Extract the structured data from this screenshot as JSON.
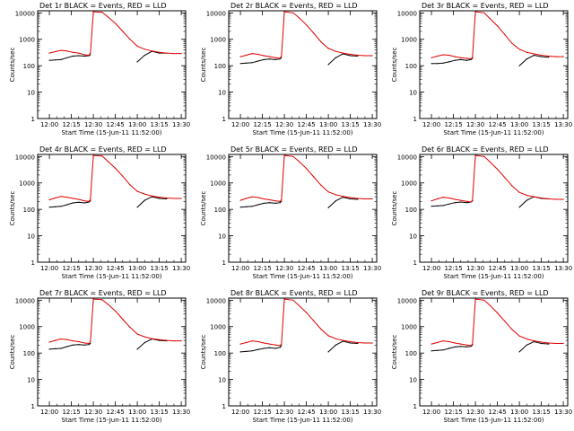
{
  "colors": {
    "events": "#000000",
    "lld": "#e00000",
    "axes": "#000000",
    "background": "#ffffff"
  },
  "common": {
    "xlabel": "Start Time (15-Jun-11 11:52:00)",
    "ylabel": "Counts/sec",
    "y_ticks": [
      "1",
      "10",
      "100",
      "1000",
      "10000"
    ],
    "x_ticks": [
      "12:00",
      "12:15",
      "12:30",
      "12:45",
      "13:00",
      "13:15",
      "13:30"
    ]
  },
  "chart_data": [
    {
      "type": "line",
      "title": "Det 1r BLACK = Events, RED = LLD",
      "yscale": "log",
      "ylim": [
        1,
        12000
      ],
      "xlim": [
        "11:52:00",
        "13:33:00"
      ],
      "x": [
        "12:00",
        "12:04",
        "12:08",
        "12:12",
        "12:16",
        "12:20",
        "12:24",
        "12:27",
        "12:28",
        "12:30",
        "12:36",
        "12:40",
        "12:45",
        "12:50",
        "12:55",
        "13:00",
        "13:05",
        "13:10",
        "13:15",
        "13:20",
        "13:25",
        "13:30"
      ],
      "series": [
        {
          "name": "Events",
          "values": [
            160,
            165,
            170,
            200,
            230,
            240,
            230,
            240,
            260,
            null,
            null,
            null,
            null,
            null,
            null,
            140,
            250,
            350,
            300,
            300,
            null,
            null
          ]
        },
        {
          "name": "LLD",
          "values": [
            300,
            340,
            380,
            360,
            320,
            300,
            260,
            250,
            300,
            11000,
            10500,
            7000,
            4000,
            2000,
            1000,
            550,
            420,
            360,
            320,
            300,
            290,
            290
          ]
        }
      ]
    },
    {
      "type": "line",
      "title": "Det 2r BLACK = Events, RED = LLD",
      "yscale": "log",
      "ylim": [
        1,
        12000
      ],
      "xlim": [
        "11:52:00",
        "13:33:00"
      ],
      "x": [
        "12:00",
        "12:04",
        "12:08",
        "12:12",
        "12:16",
        "12:20",
        "12:24",
        "12:27",
        "12:28",
        "12:30",
        "12:36",
        "12:40",
        "12:45",
        "12:50",
        "12:55",
        "13:00",
        "13:05",
        "13:10",
        "13:15",
        "13:20",
        "13:25",
        "13:30"
      ],
      "series": [
        {
          "name": "Events",
          "values": [
            120,
            125,
            130,
            150,
            170,
            180,
            170,
            180,
            200,
            null,
            null,
            null,
            null,
            null,
            null,
            110,
            200,
            280,
            240,
            230,
            null,
            null
          ]
        },
        {
          "name": "LLD",
          "values": [
            220,
            250,
            290,
            270,
            240,
            220,
            200,
            190,
            230,
            11000,
            10000,
            6500,
            3500,
            1700,
            800,
            450,
            350,
            300,
            270,
            250,
            240,
            240
          ]
        }
      ]
    },
    {
      "type": "line",
      "title": "Det 3r BLACK = Events, RED = LLD",
      "yscale": "log",
      "ylim": [
        1,
        12000
      ],
      "xlim": [
        "11:52:00",
        "13:33:00"
      ],
      "x": [
        "12:00",
        "12:04",
        "12:08",
        "12:12",
        "12:16",
        "12:20",
        "12:24",
        "12:27",
        "12:28",
        "12:30",
        "12:36",
        "12:40",
        "12:45",
        "12:50",
        "12:55",
        "13:00",
        "13:05",
        "13:10",
        "13:15",
        "13:20",
        "13:25",
        "13:30"
      ],
      "series": [
        {
          "name": "Events",
          "values": [
            120,
            120,
            125,
            140,
            160,
            170,
            160,
            170,
            190,
            null,
            null,
            null,
            null,
            null,
            null,
            100,
            180,
            250,
            220,
            210,
            null,
            null
          ]
        },
        {
          "name": "LLD",
          "values": [
            200,
            230,
            260,
            250,
            220,
            200,
            190,
            180,
            210,
            11000,
            10000,
            6000,
            3200,
            1500,
            700,
            420,
            320,
            280,
            250,
            230,
            220,
            220
          ]
        }
      ]
    },
    {
      "type": "line",
      "title": "Det 4r BLACK = Events, RED = LLD",
      "yscale": "log",
      "ylim": [
        1,
        12000
      ],
      "xlim": [
        "11:52:00",
        "13:33:00"
      ],
      "x": [
        "12:00",
        "12:04",
        "12:08",
        "12:12",
        "12:16",
        "12:20",
        "12:24",
        "12:27",
        "12:28",
        "12:30",
        "12:36",
        "12:40",
        "12:45",
        "12:50",
        "12:55",
        "13:00",
        "13:05",
        "13:10",
        "13:15",
        "13:20",
        "13:25",
        "13:30"
      ],
      "series": [
        {
          "name": "Events",
          "values": [
            120,
            125,
            130,
            150,
            175,
            185,
            175,
            190,
            210,
            null,
            null,
            null,
            null,
            null,
            null,
            120,
            220,
            300,
            260,
            250,
            null,
            null
          ]
        },
        {
          "name": "LLD",
          "values": [
            230,
            270,
            310,
            290,
            260,
            240,
            210,
            200,
            240,
            11000,
            10500,
            6500,
            3600,
            1800,
            850,
            480,
            380,
            320,
            290,
            270,
            260,
            260
          ]
        }
      ]
    },
    {
      "type": "line",
      "title": "Det 5r BLACK = Events, RED = LLD",
      "yscale": "log",
      "ylim": [
        1,
        12000
      ],
      "xlim": [
        "11:52:00",
        "13:33:00"
      ],
      "x": [
        "12:00",
        "12:04",
        "12:08",
        "12:12",
        "12:16",
        "12:20",
        "12:24",
        "12:27",
        "12:28",
        "12:30",
        "12:36",
        "12:40",
        "12:45",
        "12:50",
        "12:55",
        "13:00",
        "13:05",
        "13:10",
        "13:15",
        "13:20",
        "13:25",
        "13:30"
      ],
      "series": [
        {
          "name": "Events",
          "values": [
            120,
            125,
            130,
            150,
            170,
            180,
            170,
            180,
            200,
            null,
            null,
            null,
            null,
            null,
            null,
            115,
            210,
            290,
            250,
            240,
            null,
            null
          ]
        },
        {
          "name": "LLD",
          "values": [
            220,
            260,
            300,
            280,
            250,
            230,
            210,
            200,
            230,
            11000,
            10000,
            6500,
            3500,
            1700,
            820,
            460,
            360,
            310,
            280,
            260,
            250,
            250
          ]
        }
      ]
    },
    {
      "type": "line",
      "title": "Det 6r BLACK = Events, RED = LLD",
      "yscale": "log",
      "ylim": [
        1,
        12000
      ],
      "xlim": [
        "11:52:00",
        "13:33:00"
      ],
      "x": [
        "12:00",
        "12:04",
        "12:08",
        "12:12",
        "12:16",
        "12:20",
        "12:24",
        "12:27",
        "12:28",
        "12:30",
        "12:36",
        "12:40",
        "12:45",
        "12:50",
        "12:55",
        "13:00",
        "13:05",
        "13:10",
        "13:15",
        "13:20",
        "13:25",
        "13:30"
      ],
      "series": [
        {
          "name": "Events",
          "values": [
            130,
            135,
            140,
            160,
            180,
            190,
            180,
            190,
            210,
            null,
            null,
            null,
            null,
            null,
            null,
            120,
            220,
            300,
            260,
            250,
            null,
            null
          ]
        },
        {
          "name": "LLD",
          "values": [
            210,
            250,
            290,
            270,
            240,
            220,
            200,
            190,
            220,
            11000,
            10000,
            6200,
            3300,
            1600,
            780,
            440,
            340,
            300,
            270,
            250,
            240,
            240
          ]
        }
      ]
    },
    {
      "type": "line",
      "title": "Det 7r BLACK = Events, RED = LLD",
      "yscale": "log",
      "ylim": [
        1,
        12000
      ],
      "xlim": [
        "11:52:00",
        "13:33:00"
      ],
      "x": [
        "12:00",
        "12:04",
        "12:08",
        "12:12",
        "12:16",
        "12:20",
        "12:24",
        "12:27",
        "12:28",
        "12:30",
        "12:36",
        "12:40",
        "12:45",
        "12:50",
        "12:55",
        "13:00",
        "13:05",
        "13:10",
        "13:15",
        "13:20",
        "13:25",
        "13:30"
      ],
      "series": [
        {
          "name": "Events",
          "values": [
            140,
            145,
            150,
            175,
            200,
            210,
            200,
            210,
            230,
            null,
            null,
            null,
            null,
            null,
            null,
            140,
            250,
            340,
            300,
            290,
            null,
            null
          ]
        },
        {
          "name": "LLD",
          "values": [
            260,
            300,
            340,
            320,
            290,
            270,
            240,
            230,
            270,
            11000,
            10500,
            7000,
            3900,
            1900,
            950,
            520,
            410,
            350,
            320,
            300,
            290,
            290
          ]
        }
      ]
    },
    {
      "type": "line",
      "title": "Det 8r BLACK = Events, RED = LLD",
      "yscale": "log",
      "ylim": [
        1,
        12000
      ],
      "xlim": [
        "11:52:00",
        "13:33:00"
      ],
      "x": [
        "12:00",
        "12:04",
        "12:08",
        "12:12",
        "12:16",
        "12:20",
        "12:24",
        "12:27",
        "12:28",
        "12:30",
        "12:36",
        "12:40",
        "12:45",
        "12:50",
        "12:55",
        "13:00",
        "13:05",
        "13:10",
        "13:15",
        "13:20",
        "13:25",
        "13:30"
      ],
      "series": [
        {
          "name": "Events",
          "values": [
            110,
            115,
            120,
            135,
            150,
            160,
            150,
            165,
            190,
            null,
            null,
            null,
            null,
            null,
            null,
            110,
            200,
            280,
            240,
            230,
            null,
            null
          ]
        },
        {
          "name": "LLD",
          "values": [
            220,
            250,
            290,
            270,
            240,
            220,
            200,
            190,
            220,
            11000,
            10000,
            6300,
            3400,
            1650,
            800,
            450,
            350,
            300,
            270,
            250,
            240,
            240
          ]
        }
      ]
    },
    {
      "type": "line",
      "title": "Det 9r BLACK = Events, RED = LLD",
      "yscale": "log",
      "ylim": [
        1,
        12000
      ],
      "xlim": [
        "11:52:00",
        "13:33:00"
      ],
      "x": [
        "12:00",
        "12:04",
        "12:08",
        "12:12",
        "12:16",
        "12:20",
        "12:24",
        "12:27",
        "12:28",
        "12:30",
        "12:36",
        "12:40",
        "12:45",
        "12:50",
        "12:55",
        "13:00",
        "13:05",
        "13:10",
        "13:15",
        "13:20",
        "13:25",
        "13:30"
      ],
      "series": [
        {
          "name": "Events",
          "values": [
            120,
            125,
            130,
            150,
            170,
            180,
            170,
            180,
            200,
            null,
            null,
            null,
            null,
            null,
            null,
            110,
            200,
            270,
            230,
            220,
            null,
            null
          ]
        },
        {
          "name": "LLD",
          "values": [
            220,
            250,
            290,
            270,
            240,
            220,
            200,
            190,
            220,
            11000,
            10000,
            6300,
            3300,
            1600,
            780,
            440,
            340,
            290,
            260,
            240,
            230,
            230
          ]
        }
      ]
    }
  ]
}
